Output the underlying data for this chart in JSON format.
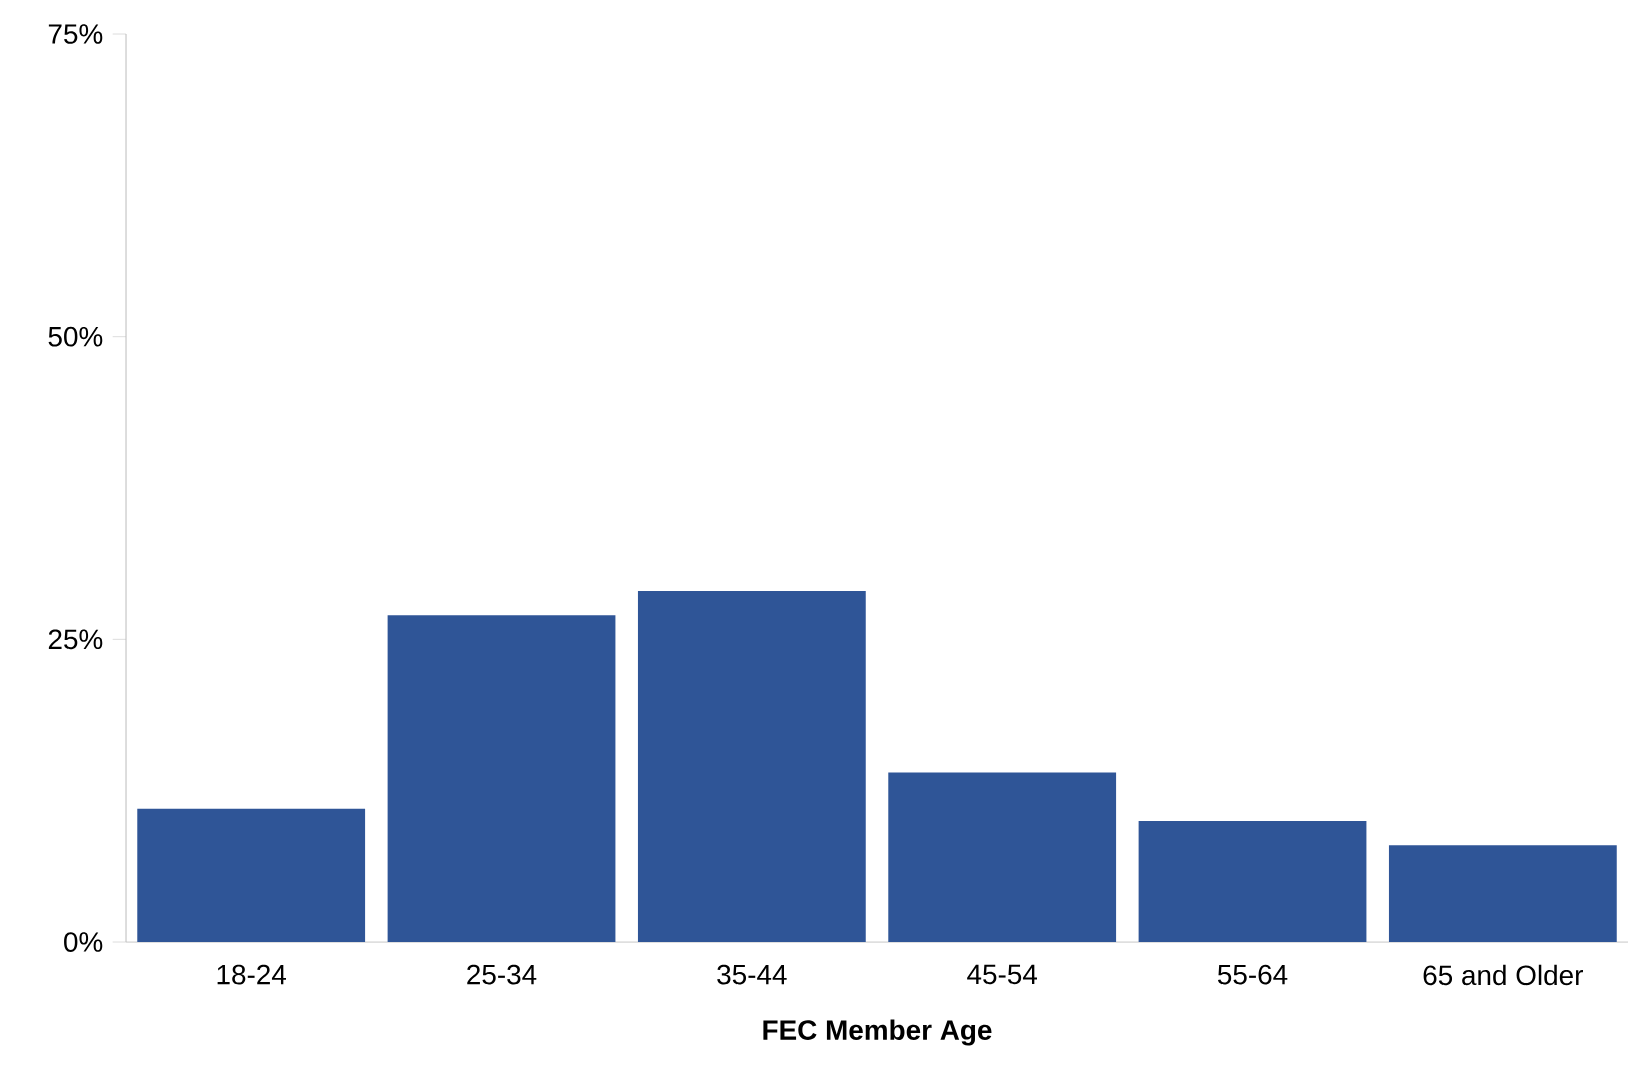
{
  "chart_data": {
    "type": "bar",
    "xlabel": "FEC Member Age",
    "categories": [
      "18-24",
      "25-34",
      "35-44",
      "45-54",
      "55-64",
      "65 and Older"
    ],
    "values": [
      11,
      27,
      29,
      14,
      10,
      8
    ],
    "color": "#2f5597",
    "ylim": [
      0,
      75
    ],
    "yticks": [
      {
        "value": 0,
        "label": "0%"
      },
      {
        "value": 25,
        "label": "25%"
      },
      {
        "value": 50,
        "label": "50%"
      },
      {
        "value": 75,
        "label": "75%"
      }
    ]
  }
}
